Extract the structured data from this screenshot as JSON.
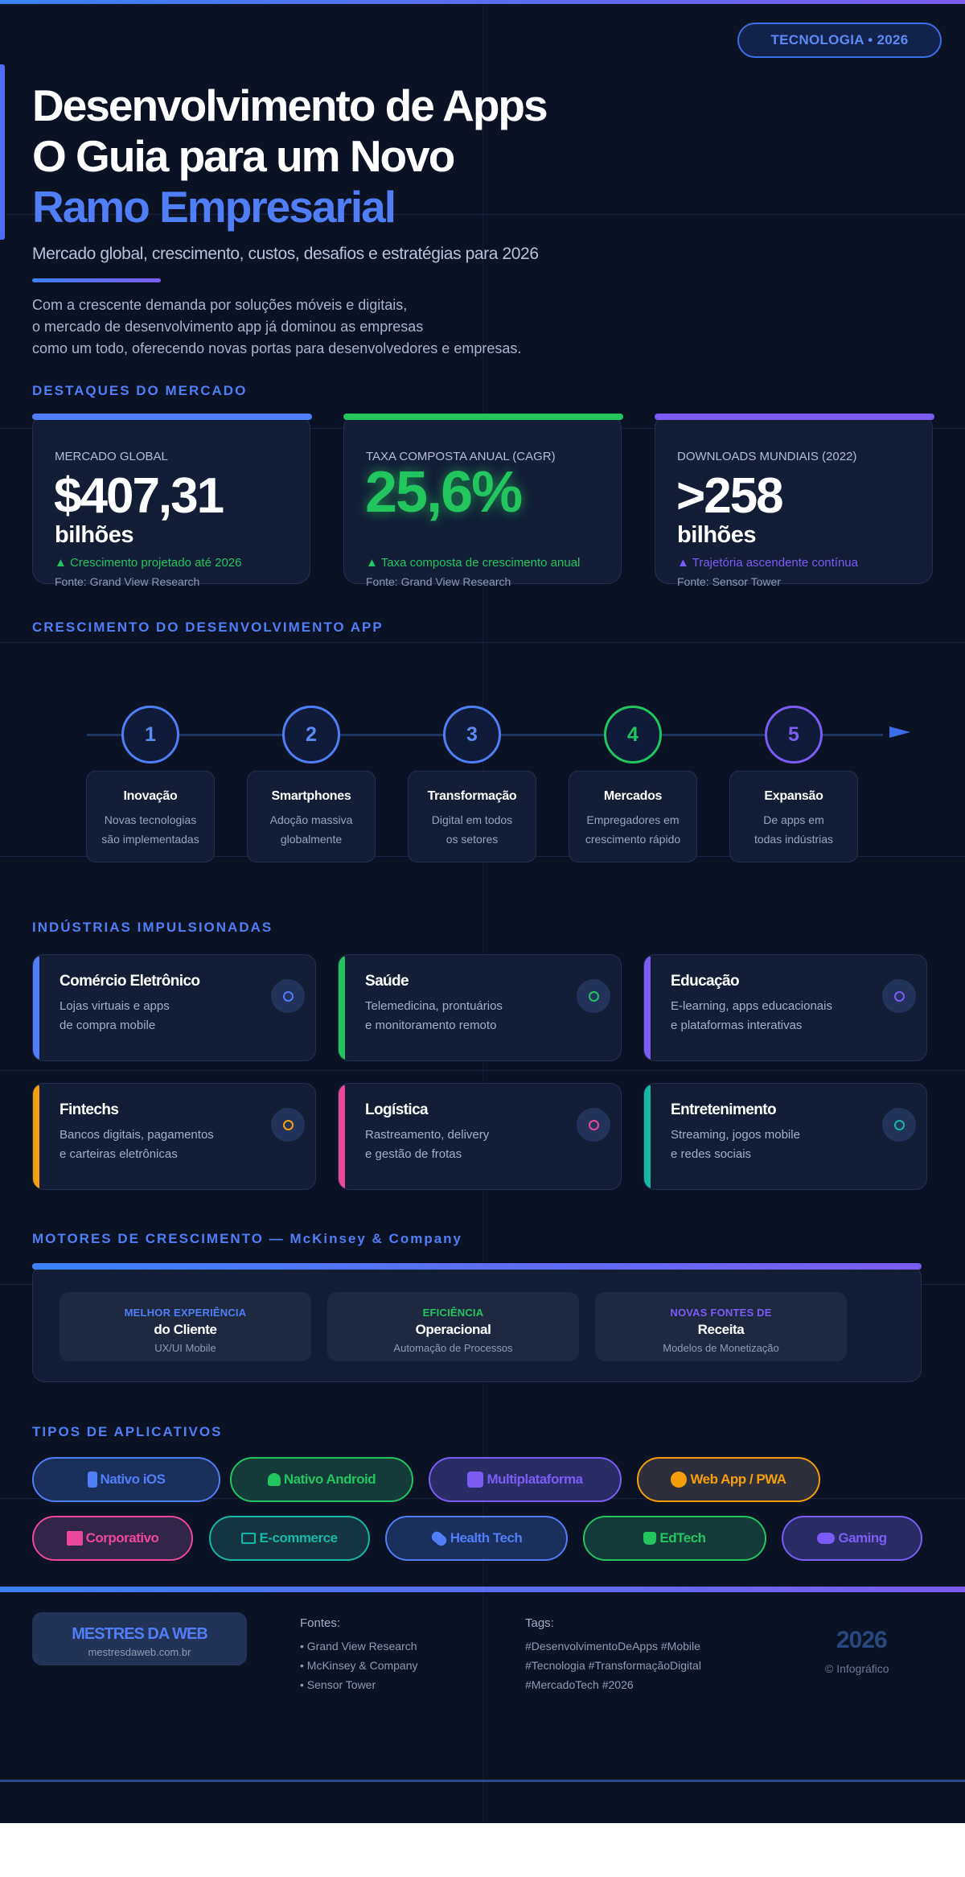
{
  "badge": "TECNOLOGIA • 2026",
  "hero": {
    "title_line1": "Desenvolvimento de Apps",
    "title_line2": "O Guia para um Novo",
    "title_line3": "Ramo Empresarial",
    "subtitle": "Mercado global, crescimento, custos, desafios e estratégias para 2026",
    "description": [
      "Com a crescente demanda por soluções móveis e digitais,",
      "o mercado de desenvolvimento app já dominou as empresas",
      "como um todo, oferecendo novas portas para desenvolvedores e empresas."
    ]
  },
  "sections": {
    "highlights": "DESTAQUES DO MERCADO",
    "growth": "CRESCIMENTO DO DESENVOLVIMENTO APP",
    "industries": "INDÚSTRIAS IMPULSIONADAS",
    "drivers": "MOTORES DE CRESCIMENTO — McKinsey & Company",
    "app_types": "TIPOS DE APLICATIVOS"
  },
  "stats": [
    {
      "label": "MERCADO GLOBAL",
      "value": "$407,31",
      "unit": "bilhões",
      "trend": "▲ Crescimento projetado até 2026",
      "source": "Fonte: Grand View Research",
      "color": "#4f7ef6"
    },
    {
      "label": "TAXA COMPOSTA ANUAL (CAGR)",
      "value": "25,6%",
      "unit": "",
      "trend": "▲ Taxa composta de crescimento anual",
      "source": "Fonte: Grand View Research",
      "color": "#22c55e"
    },
    {
      "label": "DOWNLOADS MUNDIAIS (2022)",
      "value": ">258",
      "unit": "bilhões",
      "trend": "▲ Trajetória ascendente contínua",
      "source": "Fonte: Sensor Tower",
      "color": "#7c5cf5"
    }
  ],
  "timeline": [
    {
      "num": "1",
      "title": "Inovação",
      "desc": [
        "Novas tecnologias",
        "são implementadas"
      ],
      "color": "#4f7ef6"
    },
    {
      "num": "2",
      "title": "Smartphones",
      "desc": [
        "Adoção massiva",
        "globalmente"
      ],
      "color": "#4f7ef6"
    },
    {
      "num": "3",
      "title": "Transformação",
      "desc": [
        "Digital em todos",
        "os setores"
      ],
      "color": "#4f7ef6"
    },
    {
      "num": "4",
      "title": "Mercados",
      "desc": [
        "Empregadores em",
        "crescimento rápido"
      ],
      "color": "#22c55e"
    },
    {
      "num": "5",
      "title": "Expansão",
      "desc": [
        "De apps em",
        "todas indústrias"
      ],
      "color": "#7c5cf5"
    }
  ],
  "industries": [
    {
      "title": "Comércio Eletrônico",
      "desc": [
        "Lojas virtuais e apps",
        "de compra mobile"
      ],
      "color": "#4f7ef6"
    },
    {
      "title": "Saúde",
      "desc": [
        "Telemedicina, prontuários",
        "e monitoramento remoto"
      ],
      "color": "#22c55e"
    },
    {
      "title": "Educação",
      "desc": [
        "E-learning, apps educacionais",
        "e plataformas interativas"
      ],
      "color": "#7c5cf5"
    },
    {
      "title": "Fintechs",
      "desc": [
        "Bancos digitais, pagamentos",
        "e carteiras eletrônicas"
      ],
      "color": "#f59e0b"
    },
    {
      "title": "Logística",
      "desc": [
        "Rastreamento, delivery",
        "e gestão de frotas"
      ],
      "color": "#ec4899"
    },
    {
      "title": "Entretenimento",
      "desc": [
        "Streaming, jogos mobile",
        "e redes sociais"
      ],
      "color": "#14b8a6"
    }
  ],
  "drivers": [
    {
      "kicker": "MELHOR EXPERIÊNCIA",
      "title": "do Cliente",
      "desc": "UX/UI Mobile",
      "color": "#4f7ef6"
    },
    {
      "kicker": "EFICIÊNCIA",
      "title": "Operacional",
      "desc": "Automação de Processos",
      "color": "#22c55e"
    },
    {
      "kicker": "NOVAS FONTES DE",
      "title": "Receita",
      "desc": "Modelos de Monetização",
      "color": "#7c5cf5"
    }
  ],
  "app_types_row1": [
    {
      "label": "Nativo iOS",
      "icon": "phone-icon",
      "color": "#4f7ef6"
    },
    {
      "label": "Nativo Android",
      "icon": "android-icon",
      "color": "#22c55e"
    },
    {
      "label": "Multiplataforma",
      "icon": "layers-icon",
      "color": "#7c5cf5"
    },
    {
      "label": "Web App / PWA",
      "icon": "globe-icon",
      "color": "#f59e0b"
    }
  ],
  "app_types_row2": [
    {
      "label": "Corporativo",
      "icon": "briefcase-icon",
      "color": "#ec4899"
    },
    {
      "label": "E-commerce",
      "icon": "cart-icon",
      "color": "#14b8a6"
    },
    {
      "label": "Health Tech",
      "icon": "pill-icon",
      "color": "#4f7ef6"
    },
    {
      "label": "EdTech",
      "icon": "book-icon",
      "color": "#22c55e"
    },
    {
      "label": "Gaming",
      "icon": "gamepad-icon",
      "color": "#7c5cf5"
    }
  ],
  "footer": {
    "brand": "MESTRES DA WEB",
    "url": "mestresdaweb.com.br",
    "sources_title": "Fontes:",
    "sources": [
      "• Grand View Research",
      "• McKinsey & Company",
      "• Sensor Tower"
    ],
    "tags_title": "Tags:",
    "tags": [
      "#DesenvolvimentoDeApps #Mobile",
      "#Tecnologia #TransformaçãoDigital",
      "#MercadoTech #2026"
    ],
    "year": "2026",
    "copyright": "© Infográfico"
  }
}
